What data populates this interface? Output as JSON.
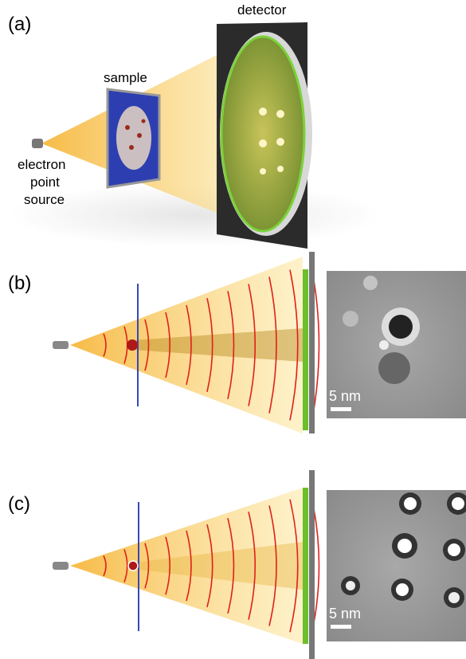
{
  "panels": [
    {
      "label": "(a)",
      "detector_label": "detector",
      "sample_label": "sample",
      "source_label": [
        "electron",
        "point",
        "source"
      ]
    },
    {
      "label": "(b)",
      "scale_bar": "5 nm"
    },
    {
      "label": "(c)",
      "scale_bar": "5 nm"
    }
  ]
}
